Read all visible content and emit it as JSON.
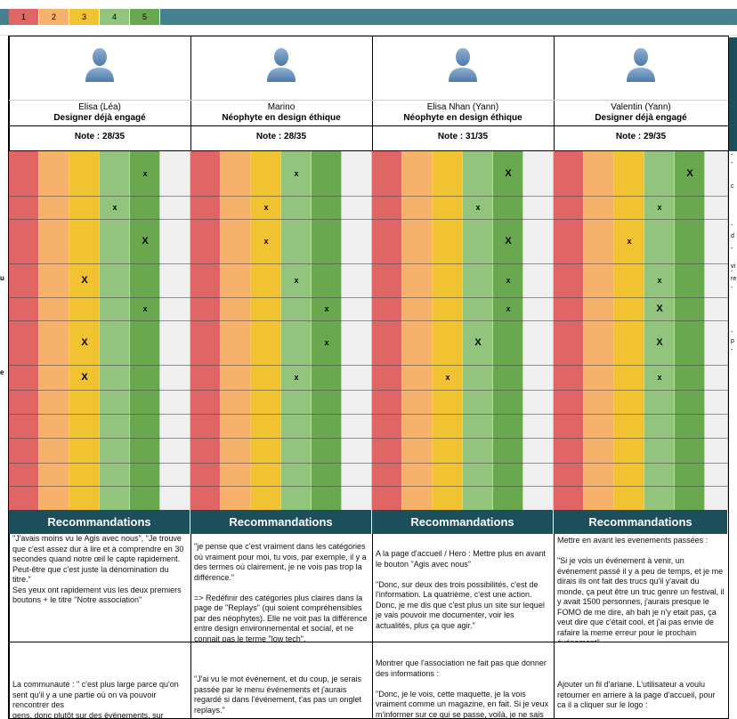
{
  "legend": [
    {
      "label": "1",
      "color": "#e06666"
    },
    {
      "label": "2",
      "color": "#f6b26b"
    },
    {
      "label": "3",
      "color": "#f1c232"
    },
    {
      "label": "4",
      "color": "#93c47d"
    },
    {
      "label": "5",
      "color": "#6aa84f"
    }
  ],
  "left_fragments": [
    "u",
    "e"
  ],
  "right_fragments": [
    "-",
    "-",
    "c",
    "-",
    "d",
    "-",
    "vi",
    "-",
    "re",
    "-",
    "-",
    "p",
    "-"
  ],
  "recommendations_title": "Recommandations",
  "people": [
    {
      "name": "Elisa (Léa)",
      "role": "Designer déjà engagé",
      "note": "Note : 28/35",
      "ratings": [
        5,
        4,
        5,
        3,
        5,
        3,
        3
      ],
      "marks": [
        "x",
        "x",
        "X",
        "X",
        "x",
        "X",
        "X"
      ],
      "recommendations": [
        "\"J'avais moins vu le Agis avec nous\", \"Je trouve que c'est assez dur à lire et à comprendre en 30 secondes quand notre œil le capte rapidement. Peut-être que c'est juste la dénomination du titre.\"\nSes yeux ont rapidement vus les deux premiers boutons + le titre \"Notre association\"",
        "La communauté : \" c'est plus large parce qu'on sent qu'il y a une partie où on va pouvoir rencontrer des\ngens, donc plutôt sur des événements, sur"
      ]
    },
    {
      "name": "Marino",
      "role": "Néophyte en design éthique",
      "note": "Note : 28/35",
      "ratings": [
        4,
        3,
        3,
        4,
        5,
        5,
        4
      ],
      "marks": [
        "x",
        "x",
        "x",
        "x",
        "x",
        "x",
        "x"
      ],
      "recommendations": [
        "\"je pense que c'est vraiment dans les catégories où vraiment pour moi, tu vois, par exemple, il y a des termes où clairement, je ne vois pas trop la différence.\"\n\n=> Redéfinir des catégories plus claires dans la page de \"Replays\" (qui soient compréhensibles par des néophytes). Elle ne voit pas la différence entre design environnemental et social, et ne connait pas le terme \"low tech\".",
        "\"J'ai vu le mot événement, et du coup, je serais passée par le menu événements et j'aurais regardé si dans l'événement, t'as pas un onglet replays.\""
      ]
    },
    {
      "name": "Elisa Nhan (Yann)",
      "role": "Néophyte en design éthique",
      "note": "Note : 31/35",
      "ratings": [
        5,
        4,
        5,
        5,
        5,
        4,
        3
      ],
      "marks": [
        "X",
        "x",
        "X",
        "x",
        "x",
        "X",
        "x"
      ],
      "recommendations": [
        "A la page d'accueil / Hero : Mettre plus en avant le bouton \"Agis avec nous\"\n\n\"Donc, sur deux des trois possibilités, c'est de l'information. La quatrième, c'est une action. Donc, je me dis que c'est plus un site sur lequel je vais pouvoir me documenter, voir les actualités, plus ça que agir.\"",
        "Montrer que l'association ne fait pas que donner des informations :\n\n\"Donc, je le vois, cette maquette, je la vois vraiment comme un magazine, en fait. Si je veux m'informer sur ce qui se passe, voilà, je ne sais pas si c'est le but ou si, justement, le but, c'est"
      ]
    },
    {
      "name": "Valentin (Yann)",
      "role": "Designer déjà engagé",
      "note": "Note : 29/35",
      "ratings": [
        5,
        4,
        3,
        4,
        4,
        4,
        4
      ],
      "marks": [
        "X",
        "x",
        "x",
        "x",
        "X",
        "X",
        "x"
      ],
      "recommendations": [
        "Mettre en avant les evenements passées :\n\n\"Si je vois un événement à venir, un événement passé il y a peu de temps, et je me dirais ils ont fait des trucs qu'il y'avait du monde, ça peut être un truc genre un festival, il y avait 1500 personnes, j'aurais presque le FOMO de me dire, ah bah je n'y etait pas, ça veut dire que c'était cool, et j'ai pas envie de rafaire la meme erreur pour le prochain événement\"",
        "Ajouter un fil d'ariane. L'utilisateur a voulu retourner en arriere à la page d'accueil, pour ca il a cliquer sur le logo :"
      ]
    }
  ]
}
